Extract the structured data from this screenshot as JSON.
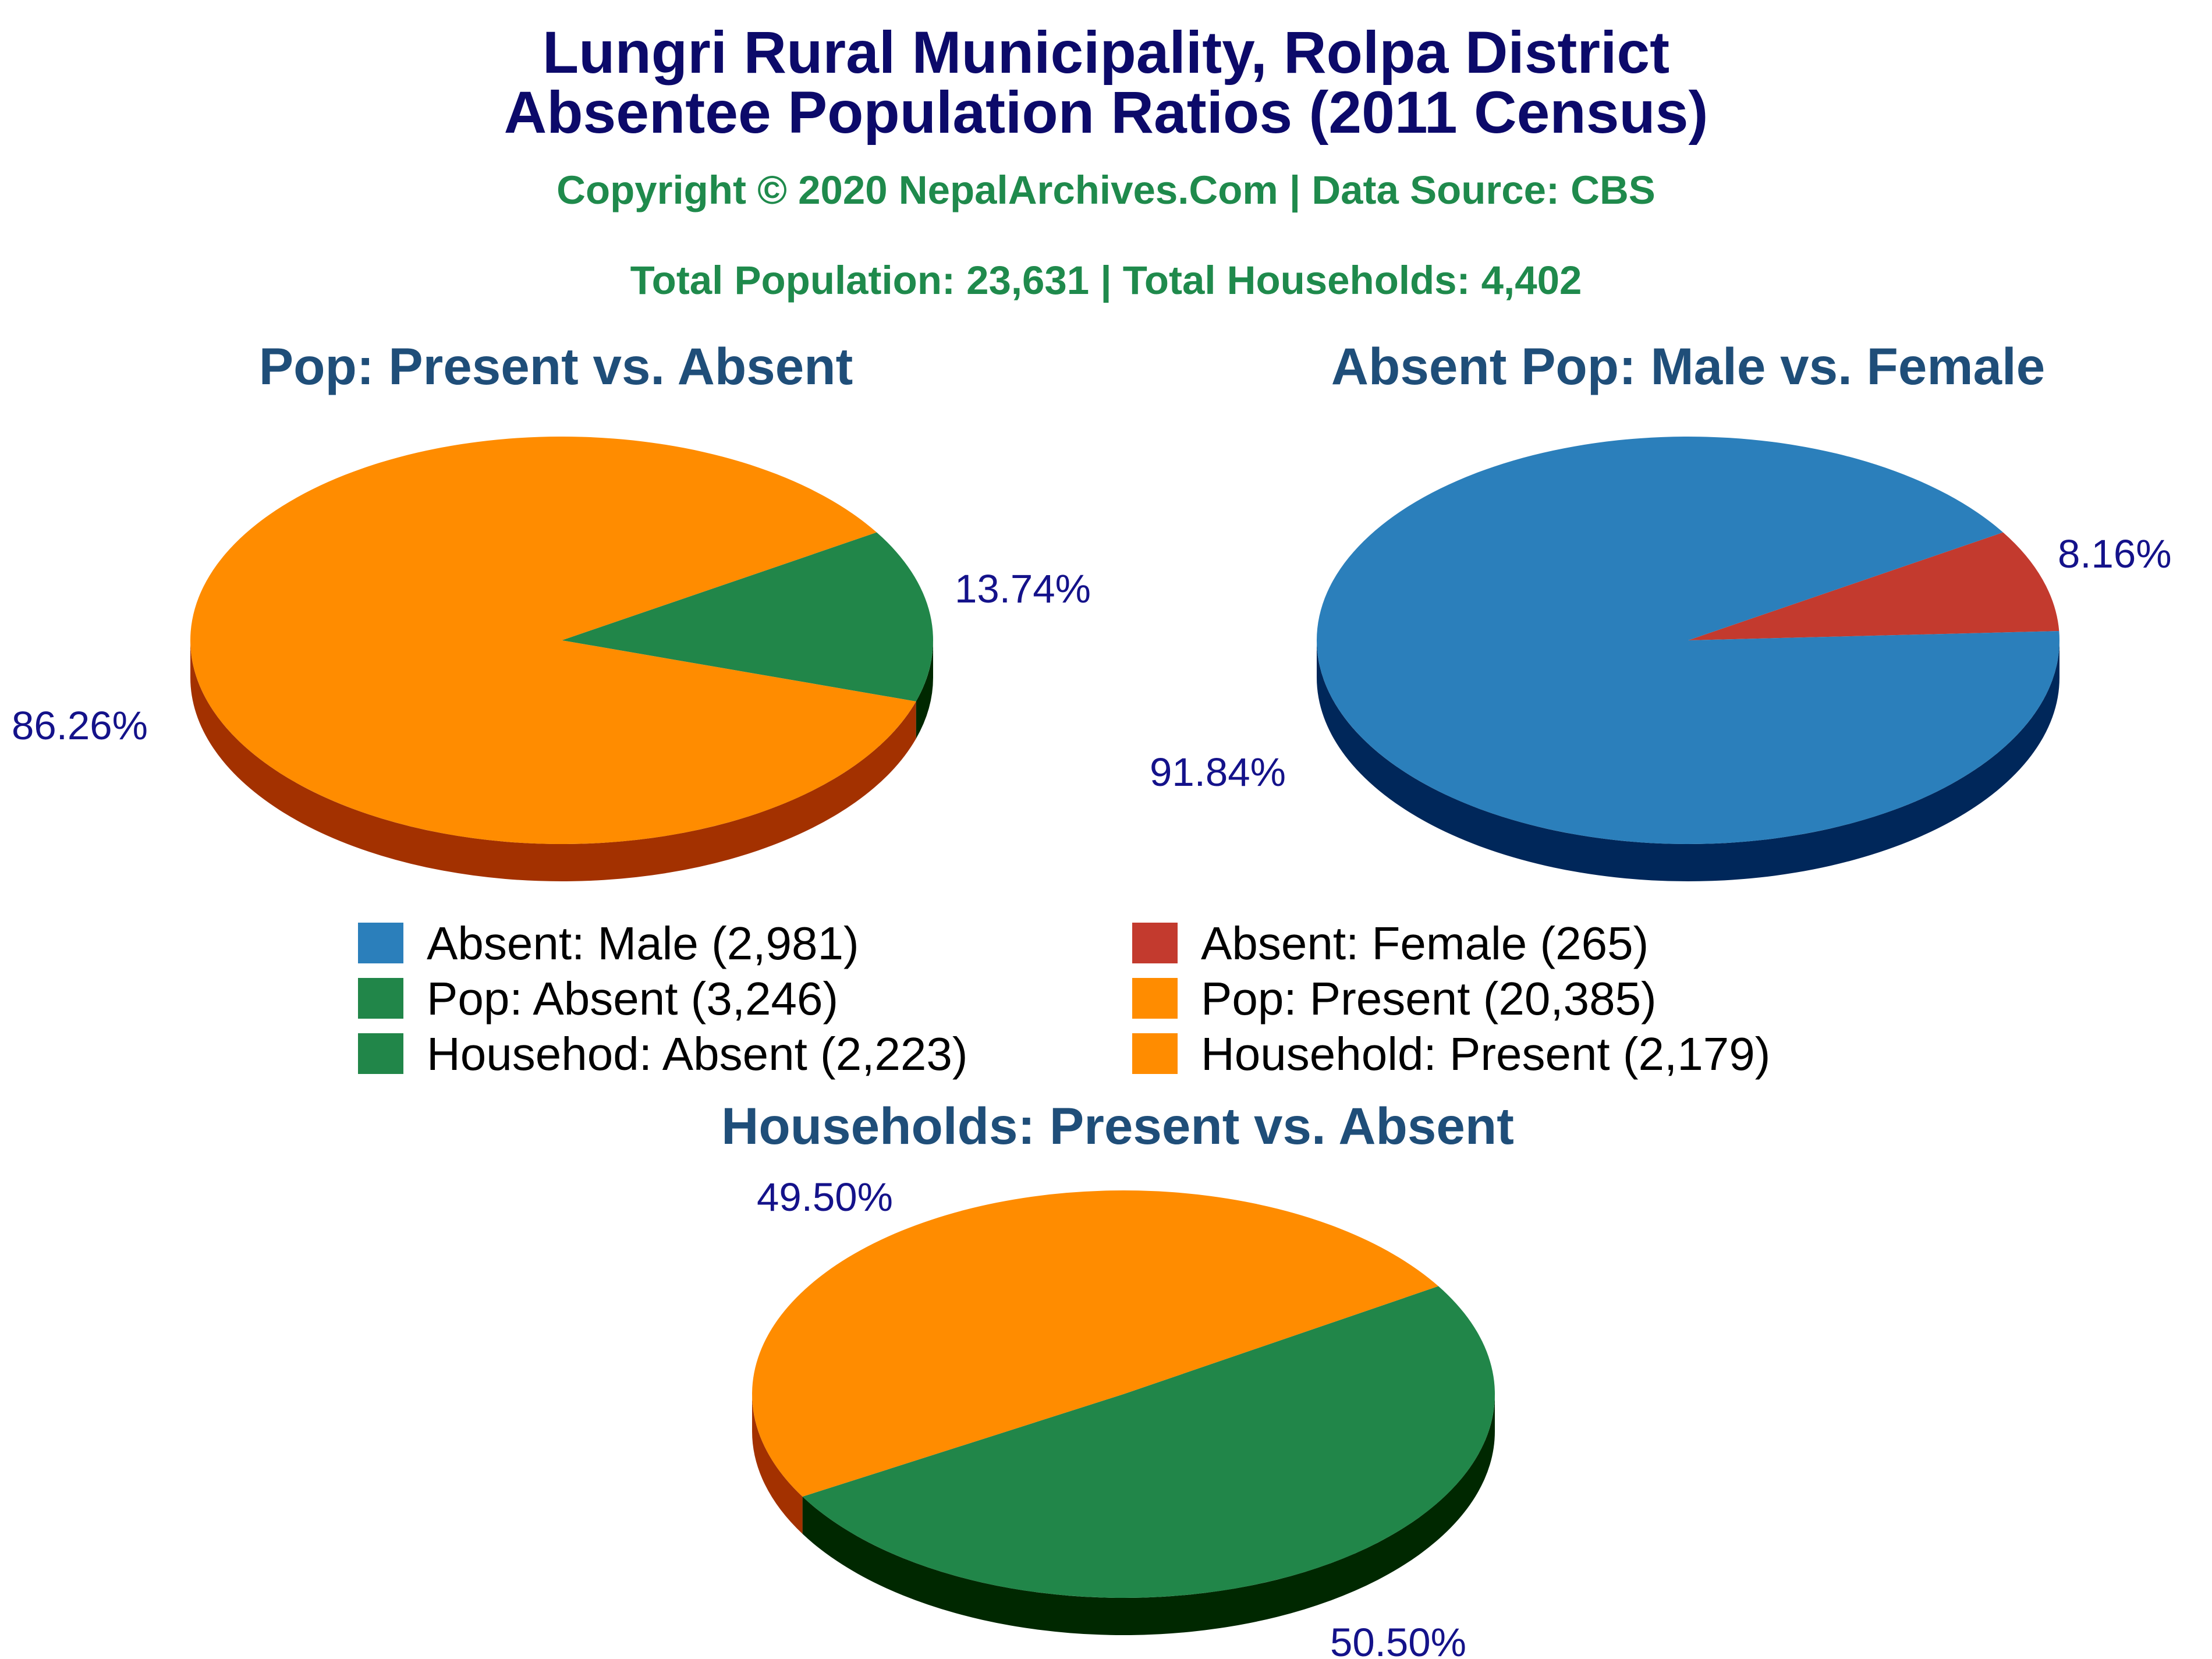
{
  "header": {
    "title_line1": "Lungri Rural Municipality, Rolpa District",
    "title_line2": "Absentee Population Ratios (2011 Census)",
    "copyright": "Copyright © 2020 NepalArchives.Com | Data Source: CBS",
    "totals": "Total Population: 23,631 | Total Households: 4,402"
  },
  "colors": {
    "title": "#0c0a6a",
    "green_text": "#1f8a4c",
    "subtitle": "#1f4e79",
    "pct_label": "#14128a",
    "orange": "#ff8c00",
    "orange_side": "#a33100",
    "green": "#218649",
    "green_side": "#002800",
    "blue": "#2b7fbb",
    "blue_side": "#00275a",
    "red": "#c33a2e"
  },
  "legend": [
    {
      "label": "Absent: Male (2,981)",
      "color": "#2b7fbb"
    },
    {
      "label": "Absent: Female (265)",
      "color": "#c33a2e"
    },
    {
      "label": "Pop: Absent (3,246)",
      "color": "#218649"
    },
    {
      "label": "Pop: Present (20,385)",
      "color": "#ff8c00"
    },
    {
      "label": "Househod: Absent (2,223)",
      "color": "#218649"
    },
    {
      "label": "Household: Present (2,179)",
      "color": "#ff8c00"
    }
  ],
  "chart_data": [
    {
      "type": "pie",
      "title": "Pop: Present vs. Absent",
      "slices": [
        {
          "name": "Pop: Absent",
          "value": 3246,
          "label": "13.74%",
          "color": "#218649",
          "side": "#002800"
        },
        {
          "name": "Pop: Present",
          "value": 20385,
          "label": "86.26%",
          "color": "#ff8c00",
          "side": "#a33100"
        }
      ]
    },
    {
      "type": "pie",
      "title": "Absent Pop: Male vs. Female",
      "slices": [
        {
          "name": "Absent: Female",
          "value": 265,
          "label": "8.16%",
          "color": "#c33a2e",
          "side": "#6b1a12"
        },
        {
          "name": "Absent: Male",
          "value": 2981,
          "label": "91.84%",
          "color": "#2b7fbb",
          "side": "#00275a"
        }
      ]
    },
    {
      "type": "pie",
      "title": "Households: Present vs. Absent",
      "slices": [
        {
          "name": "Household: Absent",
          "value": 2223,
          "label": "50.50%",
          "color": "#218649",
          "side": "#002800"
        },
        {
          "name": "Household: Present",
          "value": 2179,
          "label": "49.50%",
          "color": "#ff8c00",
          "side": "#a33100"
        }
      ]
    }
  ]
}
